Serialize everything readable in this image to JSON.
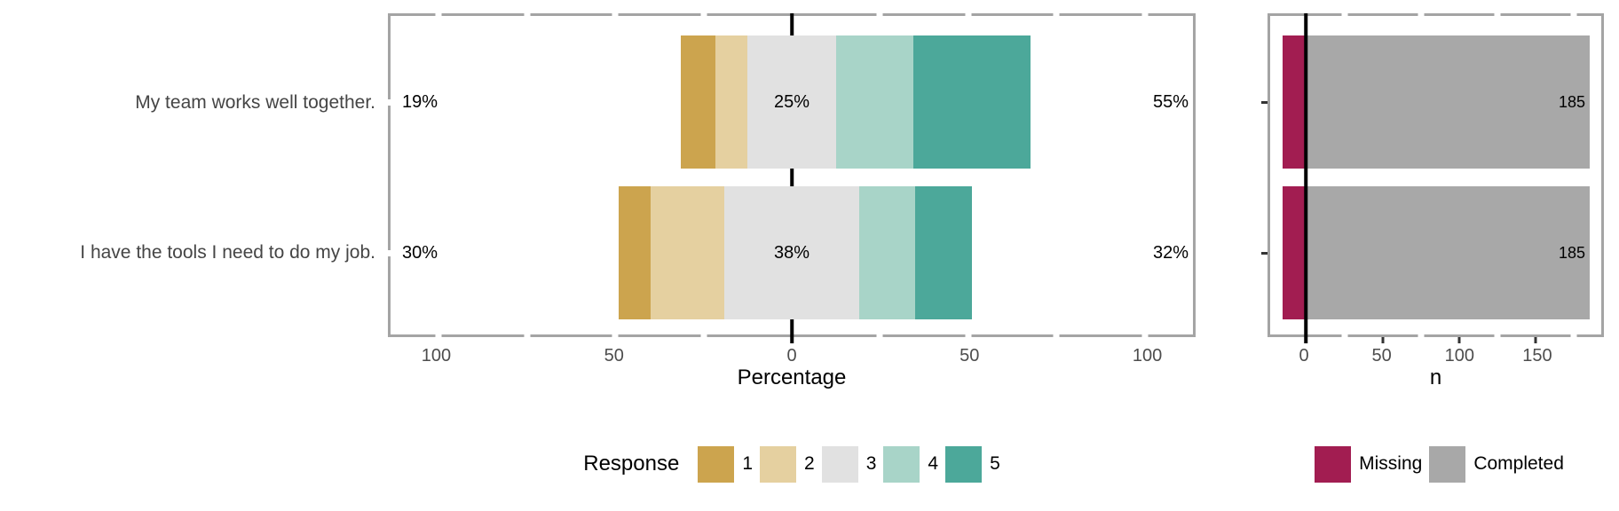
{
  "chart_data": [
    {
      "type": "bar",
      "subtype": "diverging-stacked-likert",
      "title": "",
      "categories": [
        "My team works well together.",
        "I have the tools I need to do my job."
      ],
      "series": [
        {
          "name": "1",
          "color": "#CCA44E",
          "values": [
            10,
            9
          ]
        },
        {
          "name": "2",
          "color": "#E5D0A0",
          "values": [
            9,
            21
          ]
        },
        {
          "name": "3",
          "color": "#E1E1E1",
          "values": [
            25,
            38
          ]
        },
        {
          "name": "4",
          "color": "#A8D4C8",
          "values": [
            22,
            16
          ]
        },
        {
          "name": "5",
          "color": "#4CA89A",
          "values": [
            33,
            16
          ]
        }
      ],
      "annotations": {
        "low": [
          "19%",
          "30%"
        ],
        "neutral": [
          "25%",
          "38%"
        ],
        "high": [
          "55%",
          "32%"
        ]
      },
      "neutral_centered": true,
      "xlabel": "Percentage",
      "ylabel": "",
      "xlim": [
        -113.6,
        113.6
      ],
      "x_ticks_labeled": [
        -100,
        -50,
        0,
        50,
        100
      ],
      "x_ticks_minor": [
        -75,
        -25,
        25,
        75
      ],
      "zero_line_color": "#000000",
      "legend_position": "bottom"
    },
    {
      "type": "bar",
      "subtype": "stacked-horizontal-counts",
      "title": "",
      "categories": [
        "My team works well together.",
        "I have the tools I need to do my job."
      ],
      "series": [
        {
          "name": "Missing",
          "color": "#A21D51",
          "values": [
            -15,
            -15
          ]
        },
        {
          "name": "Completed",
          "color": "#A8A8A8",
          "values": [
            185,
            185
          ]
        }
      ],
      "bar_labels": [
        "185",
        "185"
      ],
      "xlabel": "n",
      "ylabel": "",
      "xlim": [
        -23.4,
        192.8
      ],
      "x_ticks_labeled": [
        0,
        50,
        100,
        150
      ],
      "x_ticks_minor": [
        25,
        75,
        125,
        175
      ],
      "zero_line_color": "#000000",
      "legend_position": "bottom"
    }
  ],
  "legend_response": {
    "title": "Response",
    "items": [
      {
        "label": "1",
        "color": "#CCA44E"
      },
      {
        "label": "2",
        "color": "#E5D0A0"
      },
      {
        "label": "3",
        "color": "#E1E1E1"
      },
      {
        "label": "4",
        "color": "#A8D4C8"
      },
      {
        "label": "5",
        "color": "#4CA89A"
      }
    ]
  },
  "legend_completion": {
    "items": [
      {
        "label": "Missing",
        "color": "#A21D51"
      },
      {
        "label": "Completed",
        "color": "#A8A8A8"
      }
    ]
  },
  "style": {
    "panel_border_color": "#A4A4A4",
    "axis_text_color": "#4D4D4D",
    "question_text_color": "#454545",
    "background": "#FFFFFF"
  }
}
